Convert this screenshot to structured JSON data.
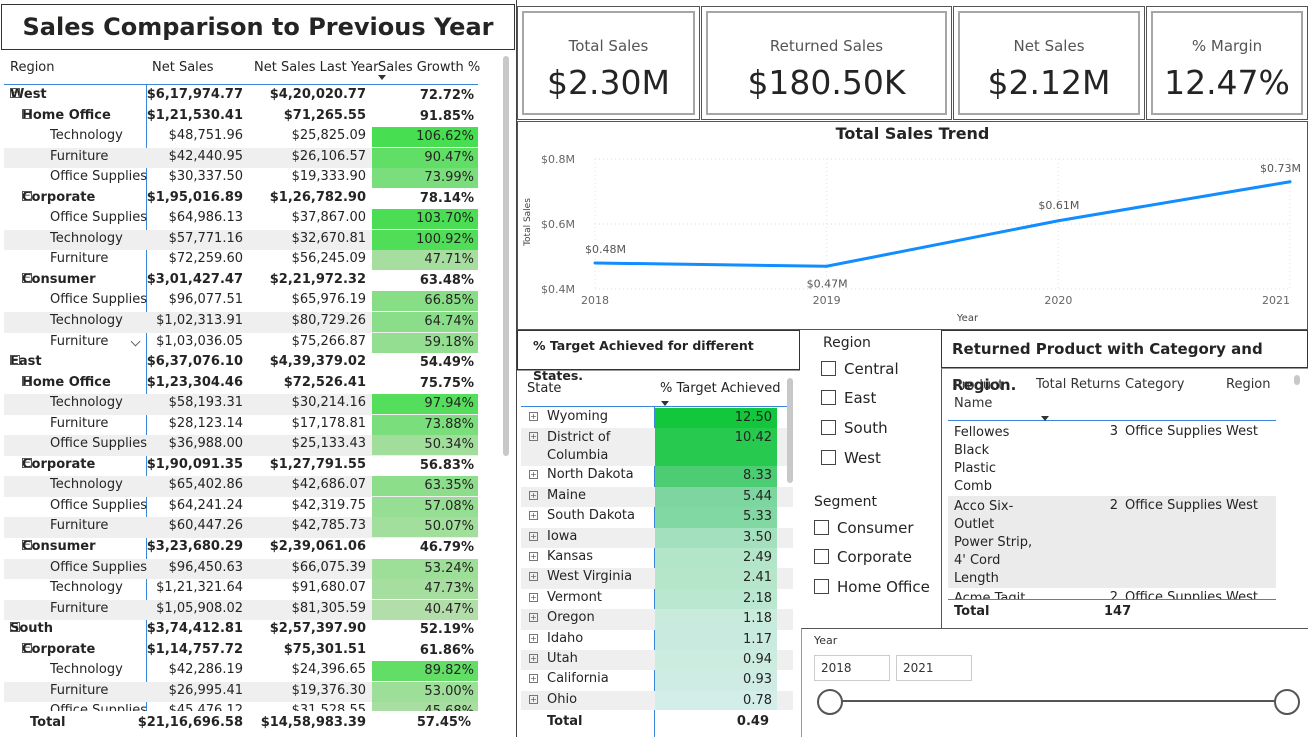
{
  "matrix": {
    "title": "Sales Comparison to Previous Year",
    "headers": {
      "region": "Region",
      "net_sales": "Net Sales",
      "net_sales_ly": "Net Sales Last Year",
      "growth": "Sales Growth %"
    },
    "rows": [
      {
        "level": 0,
        "label": "West",
        "net": "$6,17,974.77",
        "ly": "$4,20,020.77",
        "growth": "72.72%"
      },
      {
        "level": 1,
        "label": "Home Office",
        "net": "$1,21,530.41",
        "ly": "$71,265.55",
        "growth": "91.85%"
      },
      {
        "level": 2,
        "label": "Technology",
        "net": "$48,751.96",
        "ly": "$25,825.09",
        "growth": "106.62%",
        "fill": 1.066
      },
      {
        "level": 2,
        "label": "Furniture",
        "net": "$42,440.95",
        "ly": "$26,106.57",
        "growth": "90.47%",
        "fill": 0.905
      },
      {
        "level": 2,
        "label": "Office Supplies",
        "net": "$30,337.50",
        "ly": "$19,333.90",
        "growth": "73.99%",
        "fill": 0.74
      },
      {
        "level": 1,
        "label": "Corporate",
        "net": "$1,95,016.89",
        "ly": "$1,26,782.90",
        "growth": "78.14%"
      },
      {
        "level": 2,
        "label": "Office Supplies",
        "net": "$64,986.13",
        "ly": "$37,867.00",
        "growth": "103.70%",
        "fill": 1.037
      },
      {
        "level": 2,
        "label": "Technology",
        "net": "$57,771.16",
        "ly": "$32,670.81",
        "growth": "100.92%",
        "fill": 1.009
      },
      {
        "level": 2,
        "label": "Furniture",
        "net": "$72,259.60",
        "ly": "$56,245.09",
        "growth": "47.71%",
        "fill": 0.477
      },
      {
        "level": 1,
        "label": "Consumer",
        "net": "$3,01,427.47",
        "ly": "$2,21,972.32",
        "growth": "63.48%"
      },
      {
        "level": 2,
        "label": "Office Supplies",
        "net": "$96,077.51",
        "ly": "$65,976.19",
        "growth": "66.85%",
        "fill": 0.669
      },
      {
        "level": 2,
        "label": "Technology",
        "net": "$1,02,313.91",
        "ly": "$80,729.26",
        "growth": "64.74%",
        "fill": 0.647
      },
      {
        "level": 2,
        "label": "Furniture",
        "net": "$1,03,036.05",
        "ly": "$75,266.87",
        "growth": "59.18%",
        "fill": 0.592
      },
      {
        "level": 0,
        "label": "East",
        "net": "$6,37,076.10",
        "ly": "$4,39,379.02",
        "growth": "54.49%"
      },
      {
        "level": 1,
        "label": "Home Office",
        "net": "$1,23,304.46",
        "ly": "$72,526.41",
        "growth": "75.75%"
      },
      {
        "level": 2,
        "label": "Technology",
        "net": "$58,193.31",
        "ly": "$30,214.16",
        "growth": "97.94%",
        "fill": 0.979
      },
      {
        "level": 2,
        "label": "Furniture",
        "net": "$28,123.14",
        "ly": "$17,178.81",
        "growth": "73.88%",
        "fill": 0.739
      },
      {
        "level": 2,
        "label": "Office Supplies",
        "net": "$36,988.00",
        "ly": "$25,133.43",
        "growth": "50.34%",
        "fill": 0.503
      },
      {
        "level": 1,
        "label": "Corporate",
        "net": "$1,90,091.35",
        "ly": "$1,27,791.55",
        "growth": "56.83%"
      },
      {
        "level": 2,
        "label": "Technology",
        "net": "$65,402.86",
        "ly": "$42,686.07",
        "growth": "63.35%",
        "fill": 0.634
      },
      {
        "level": 2,
        "label": "Office Supplies",
        "net": "$64,241.24",
        "ly": "$42,319.75",
        "growth": "57.08%",
        "fill": 0.571
      },
      {
        "level": 2,
        "label": "Furniture",
        "net": "$60,447.26",
        "ly": "$42,785.73",
        "growth": "50.07%",
        "fill": 0.501
      },
      {
        "level": 1,
        "label": "Consumer",
        "net": "$3,23,680.29",
        "ly": "$2,39,061.06",
        "growth": "46.79%"
      },
      {
        "level": 2,
        "label": "Office Supplies",
        "net": "$96,450.63",
        "ly": "$66,075.39",
        "growth": "53.24%",
        "fill": 0.532
      },
      {
        "level": 2,
        "label": "Technology",
        "net": "$1,21,321.64",
        "ly": "$91,680.07",
        "growth": "47.73%",
        "fill": 0.477
      },
      {
        "level": 2,
        "label": "Furniture",
        "net": "$1,05,908.02",
        "ly": "$81,305.59",
        "growth": "40.47%",
        "fill": 0.405
      },
      {
        "level": 0,
        "label": "South",
        "net": "$3,74,412.81",
        "ly": "$2,57,397.90",
        "growth": "52.19%"
      },
      {
        "level": 1,
        "label": "Corporate",
        "net": "$1,14,757.72",
        "ly": "$75,301.51",
        "growth": "61.86%"
      },
      {
        "level": 2,
        "label": "Technology",
        "net": "$42,286.19",
        "ly": "$24,396.65",
        "growth": "89.82%",
        "fill": 0.898
      },
      {
        "level": 2,
        "label": "Furniture",
        "net": "$26,995.41",
        "ly": "$19,376.30",
        "growth": "53.00%",
        "fill": 0.53
      },
      {
        "level": 2,
        "label": "Office Supplies",
        "net": "$45,476.12",
        "ly": "$31,528.55",
        "growth": "45.68%",
        "fill": 0.457
      }
    ],
    "total": {
      "label": "Total",
      "net": "$21,16,696.58",
      "ly": "$14,58,983.39",
      "growth": "57.45%"
    },
    "expand_symbol": "⊟"
  },
  "kpis": [
    {
      "label": "Total Sales",
      "value": "$2.30M"
    },
    {
      "label": "Returned Sales",
      "value": "$180.50K"
    },
    {
      "label": "Net Sales",
      "value": "$2.12M"
    },
    {
      "label": "% Margin",
      "value": "12.47%"
    }
  ],
  "chart_data": {
    "type": "line",
    "title": "Total Sales Trend",
    "xlabel": "Year",
    "ylabel": "Total Sales",
    "x": [
      "2018",
      "2019",
      "2020",
      "2021"
    ],
    "series": [
      {
        "values": [
          0.48,
          0.47,
          0.61,
          0.73
        ],
        "labels": [
          "$0.48M",
          "$0.47M",
          "$0.61M",
          "$0.73M"
        ],
        "color": "#118DFF"
      }
    ],
    "yticks": [
      "$0.4M",
      "$0.6M",
      "$0.8M"
    ],
    "ylim": [
      0.4,
      0.8
    ],
    "grid": true
  },
  "target_table": {
    "title": "% Target Achieved for different States.",
    "headers": {
      "state": "State",
      "target": "% Target Achieved"
    },
    "rows": [
      {
        "state": "Wyoming",
        "value": "12.50",
        "num": 12.5,
        "color": "#12c73b"
      },
      {
        "state": "District of Columbia",
        "value": "10.42",
        "num": 10.42,
        "color": "#27c94f"
      },
      {
        "state": "North Dakota",
        "value": "8.33",
        "num": 8.33,
        "color": "#4ccd73"
      },
      {
        "state": "Maine",
        "value": "5.44",
        "num": 5.44,
        "color": "#7dd69f"
      },
      {
        "state": "South Dakota",
        "value": "5.33",
        "num": 5.33,
        "color": "#82d8a2"
      },
      {
        "state": "Iowa",
        "value": "3.50",
        "num": 3.5,
        "color": "#a3e0bd"
      },
      {
        "state": "Kansas",
        "value": "2.49",
        "num": 2.49,
        "color": "#b3e5c9"
      },
      {
        "state": "West Virginia",
        "value": "2.41",
        "num": 2.41,
        "color": "#b5e6ca"
      },
      {
        "state": "Vermont",
        "value": "2.18",
        "num": 2.18,
        "color": "#b9e7d0"
      },
      {
        "state": "Oregon",
        "value": "1.18",
        "num": 1.18,
        "color": "#c9ebde"
      },
      {
        "state": "Idaho",
        "value": "1.17",
        "num": 1.17,
        "color": "#c9ebdf"
      },
      {
        "state": "Utah",
        "value": "0.94",
        "num": 0.94,
        "color": "#ccecdf"
      },
      {
        "state": "California",
        "value": "0.93",
        "num": 0.93,
        "color": "#ceece4"
      },
      {
        "state": "Ohio",
        "value": "0.78",
        "num": 0.78,
        "color": "#d3eee9"
      }
    ],
    "total": {
      "label": "Total",
      "value": "0.49"
    },
    "expand_symbol": "⊞"
  },
  "slicers": {
    "region": {
      "title": "Region",
      "options": [
        "Central",
        "East",
        "South",
        "West"
      ]
    },
    "segment": {
      "title": "Segment",
      "options": [
        "Consumer",
        "Corporate",
        "Home Office"
      ]
    }
  },
  "returns_table": {
    "title": "Returned Product with Category and Region.",
    "headers": {
      "product": "Product Name",
      "total": "Total Returns",
      "category": "Category",
      "region": "Region"
    },
    "rows": [
      {
        "product": "Fellowes Black Plastic Comb Bindings",
        "total": "3",
        "category": "Office Supplies",
        "region": "West"
      },
      {
        "product": "Acco Six-Outlet Power Strip, 4' Cord Length",
        "total": "2",
        "category": "Office Supplies",
        "region": "West"
      },
      {
        "product": "Acme Tagit",
        "total": "2",
        "category": "Office Supplies",
        "region": "West"
      }
    ],
    "total": {
      "label": "Total",
      "value": "147"
    }
  },
  "year_slicer": {
    "label": "Year",
    "from": "2018",
    "to": "2021"
  }
}
